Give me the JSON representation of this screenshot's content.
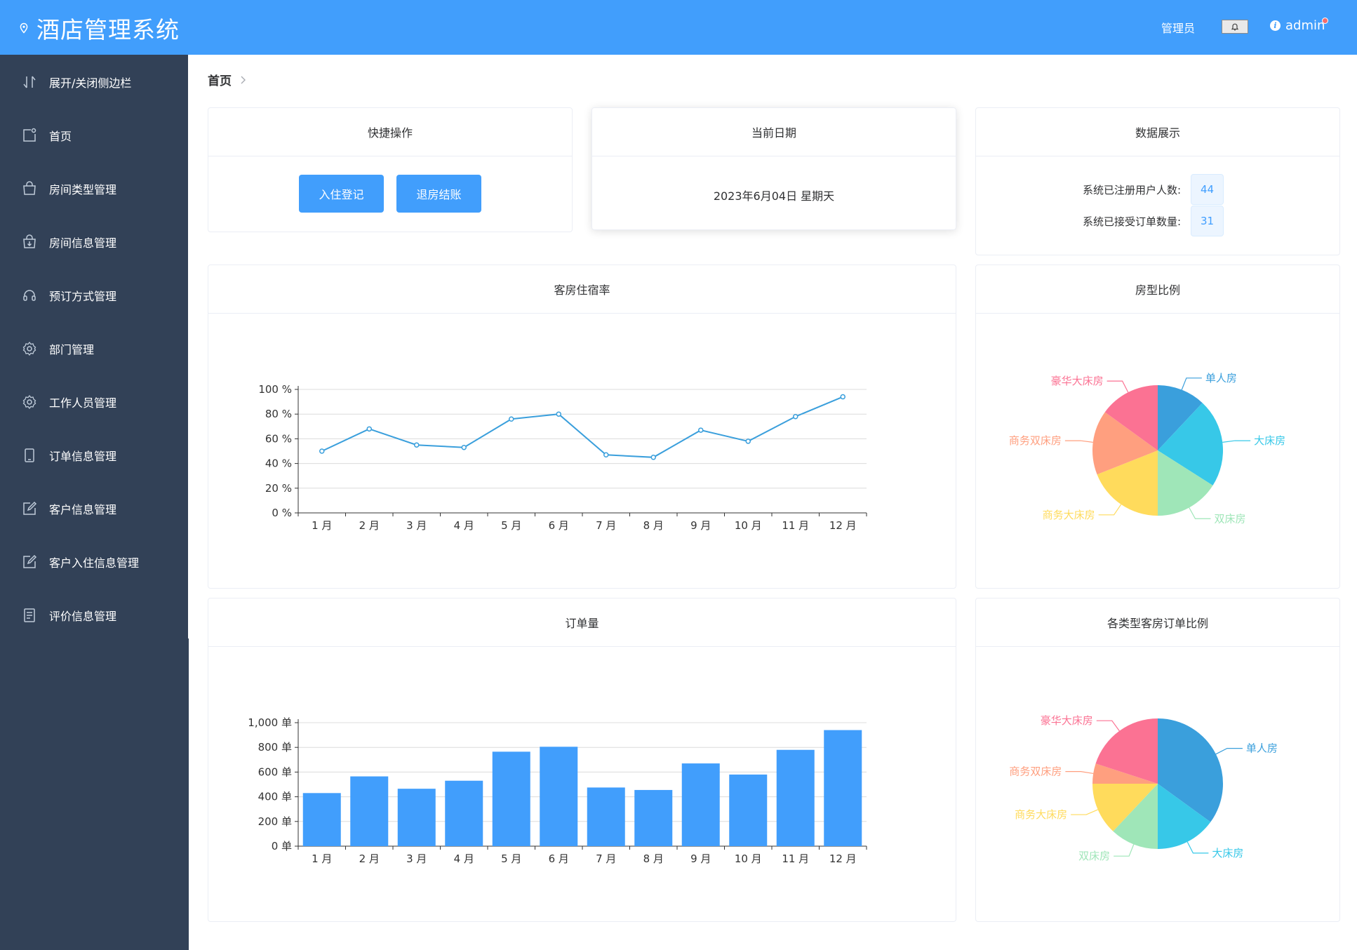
{
  "header": {
    "app_title": "酒店管理系统",
    "role_label": "管理员",
    "username": "admin"
  },
  "sidebar": {
    "items": [
      {
        "label": "展开/关闭侧边栏",
        "icon": "toggle-sidebar-icon"
      },
      {
        "label": "首页",
        "icon": "home-icon"
      },
      {
        "label": "房间类型管理",
        "icon": "bag-icon"
      },
      {
        "label": "房间信息管理",
        "icon": "bag-download-icon"
      },
      {
        "label": "预订方式管理",
        "icon": "headset-icon"
      },
      {
        "label": "部门管理",
        "icon": "gear-icon"
      },
      {
        "label": "工作人员管理",
        "icon": "gear-icon"
      },
      {
        "label": "订单信息管理",
        "icon": "phone-icon"
      },
      {
        "label": "客户信息管理",
        "icon": "edit-icon"
      },
      {
        "label": "客户入住信息管理",
        "icon": "edit-icon"
      },
      {
        "label": "评价信息管理",
        "icon": "document-icon"
      }
    ]
  },
  "breadcrumb": {
    "current": "首页"
  },
  "quick_actions": {
    "title": "快捷操作",
    "checkin_label": "入住登记",
    "checkout_label": "退房结账"
  },
  "current_date": {
    "title": "当前日期",
    "value": "2023年6月04日 星期天"
  },
  "stats": {
    "title": "数据展示",
    "users_label": "系统已注册用户人数:",
    "users_value": "44",
    "orders_label": "系统已接受订单数量:",
    "orders_value": "31"
  },
  "colors": {
    "primary": "#419efc",
    "sidebar_bg": "#324157",
    "line": "#3a9fdc"
  },
  "chart_data": [
    {
      "type": "line",
      "title": "客房住宿率",
      "categories": [
        "1 月",
        "2 月",
        "3 月",
        "4 月",
        "5 月",
        "6 月",
        "7 月",
        "8 月",
        "9 月",
        "10 月",
        "11 月",
        "12 月"
      ],
      "values": [
        50,
        68,
        55,
        53,
        76,
        80,
        47,
        45,
        67,
        58,
        78,
        94
      ],
      "ylim": [
        0,
        100
      ],
      "yticks": [
        "0 %",
        "20 %",
        "40 %",
        "60 %",
        "80 %",
        "100 %"
      ],
      "grid": true
    },
    {
      "type": "pie",
      "title": "房型比例",
      "slices": [
        {
          "name": "单人房",
          "value": 12,
          "color": "#3a9fdc"
        },
        {
          "name": "大床房",
          "value": 22,
          "color": "#37c8e8"
        },
        {
          "name": "双床房",
          "value": 16,
          "color": "#9fe6b8"
        },
        {
          "name": "商务大床房",
          "value": 19,
          "color": "#ffdb5c"
        },
        {
          "name": "商务双床房",
          "value": 16,
          "color": "#ff9f7f"
        },
        {
          "name": "豪华大床房",
          "value": 15,
          "color": "#fb7293"
        }
      ]
    },
    {
      "type": "bar",
      "title": "订单量",
      "categories": [
        "1 月",
        "2 月",
        "3 月",
        "4 月",
        "5 月",
        "6 月",
        "7 月",
        "8 月",
        "9 月",
        "10 月",
        "11 月",
        "12 月"
      ],
      "values": [
        430,
        565,
        465,
        530,
        765,
        805,
        475,
        455,
        670,
        580,
        780,
        940
      ],
      "ylim": [
        0,
        1000
      ],
      "yticks": [
        "0 单",
        "200 单",
        "400 单",
        "600 单",
        "800 单",
        "1,000 单"
      ],
      "grid": true
    },
    {
      "type": "pie",
      "title": "各类型客房订单比例",
      "slices": [
        {
          "name": "单人房",
          "value": 35,
          "color": "#3a9fdc"
        },
        {
          "name": "大床房",
          "value": 15,
          "color": "#37c8e8"
        },
        {
          "name": "双床房",
          "value": 12,
          "color": "#9fe6b8"
        },
        {
          "name": "商务大床房",
          "value": 13,
          "color": "#ffdb5c"
        },
        {
          "name": "商务双床房",
          "value": 5,
          "color": "#ff9f7f"
        },
        {
          "name": "豪华大床房",
          "value": 20,
          "color": "#fb7293"
        }
      ]
    }
  ]
}
